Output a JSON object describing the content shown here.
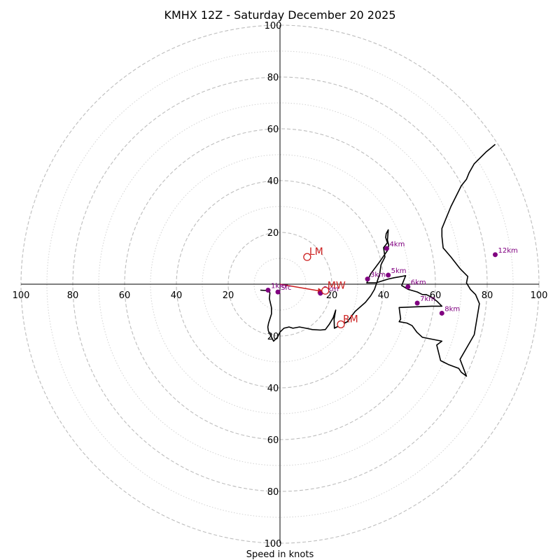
{
  "chart_data": {
    "type": "hodograph",
    "title": "KMHX 12Z - Saturday December 20 2025",
    "xlabel": "Speed in knots",
    "range_kt": 100,
    "ring_step_kt": 10,
    "x_tick_labels": [
      "100",
      "80",
      "60",
      "40",
      "20",
      "20",
      "40",
      "60",
      "80",
      "100"
    ],
    "y_tick_labels": [
      "100",
      "80",
      "60",
      "40",
      "20",
      "20",
      "40",
      "60",
      "80",
      "100"
    ],
    "colors": {
      "trace": "#000000",
      "height_marker": "#800080",
      "motion": "#cc1f1f",
      "grid": "#bdbdbd"
    },
    "trace": {
      "u": [
        -7.6,
        -4.1,
        -3.9,
        -4.1,
        -3.3,
        -3.3,
        -4.4,
        -4.7,
        -4.5,
        -2.5,
        -1.0,
        0.0,
        1.5,
        3.5,
        5.0,
        7.5,
        10.0,
        12.5,
        15.6,
        17.5,
        19.0,
        20.5,
        21.5,
        20.9,
        21.0,
        26.0,
        29.0,
        33.0,
        35.0,
        36.5,
        37.5,
        38.5,
        39.0,
        40.5,
        40.0,
        41.5,
        40.8,
        41.0,
        41.8,
        41.5,
        42.0,
        41.5,
        38.0,
        35.0,
        33.5,
        37.0,
        41.8,
        44.0,
        47.0,
        48.5,
        47.0,
        49.5,
        53.0,
        55.0,
        56.5,
        58.5,
        60.5,
        62.5,
        58.5,
        46.0,
        46.6,
        46.0,
        49.0,
        51.0,
        52.8,
        55.0,
        62.5,
        60.5,
        62.0,
        65.0,
        69.0,
        70.0,
        72.0,
        69.5,
        75.0,
        77.0,
        75.5,
        73.5,
        72.0,
        72.5,
        69.5,
        66.0,
        63.0,
        62.5,
        62.5,
        66.0,
        70.0,
        72.0,
        73.0,
        75.0,
        79.5,
        83.1
      ],
      "v": [
        -2.3,
        -2.5,
        -3.5,
        -5.5,
        -9.0,
        -11.5,
        -15.0,
        -16.5,
        -18.0,
        -22.0,
        -20.5,
        -18.5,
        -17.0,
        -16.5,
        -17.0,
        -16.5,
        -17.0,
        -17.5,
        -17.7,
        -17.5,
        -15.5,
        -13.0,
        -10.0,
        -13.5,
        -17.0,
        -14.5,
        -10.5,
        -7.0,
        -4.5,
        -2.0,
        1.0,
        4.0,
        7.5,
        10.5,
        14.1,
        16.0,
        18.0,
        19.5,
        21.0,
        17.0,
        15.0,
        13.0,
        8.0,
        4.0,
        0.5,
        0.5,
        2.0,
        2.5,
        3.0,
        3.3,
        -0.5,
        -2.0,
        -3.0,
        -4.0,
        -4.0,
        -5.0,
        -6.5,
        -8.5,
        -8.5,
        -9.0,
        -13.5,
        -14.5,
        -15.0,
        -16.0,
        -18.5,
        -20.5,
        -22.0,
        -23.5,
        -29.5,
        -31.0,
        -32.5,
        -34.0,
        -35.5,
        -29.0,
        -19.5,
        -7.5,
        -4.0,
        -2.0,
        0.5,
        3.0,
        6.0,
        10.5,
        14.0,
        18.5,
        21.5,
        30.0,
        38.0,
        40.5,
        43.0,
        46.5,
        51.0,
        54.0
      ]
    },
    "height_markers": [
      {
        "label": "Sfc",
        "u": -0.8,
        "v": -3.0
      },
      {
        "label": "1km",
        "u": -4.6,
        "v": -2.3
      },
      {
        "label": "2km",
        "u": 15.6,
        "v": -3.5
      },
      {
        "label": "3km",
        "u": 33.8,
        "v": 2.0
      },
      {
        "label": "4km",
        "u": 41.2,
        "v": 13.8
      },
      {
        "label": "5km",
        "u": 41.8,
        "v": 3.5
      },
      {
        "label": "6km",
        "u": 49.4,
        "v": -1.0
      },
      {
        "label": "7km",
        "u": 53.0,
        "v": -7.3
      },
      {
        "label": "8km",
        "u": 62.5,
        "v": -11.2
      },
      {
        "label": "12km",
        "u": 83.1,
        "v": 11.4
      }
    ],
    "storm_motion": [
      {
        "label": "LM",
        "u": 10.5,
        "v": 10.5
      },
      {
        "label": "MW",
        "u": 17.5,
        "v": -2.5
      },
      {
        "label": "RM",
        "u": 23.5,
        "v": -15.5
      }
    ],
    "mean_wind_vector": {
      "from_u": 0,
      "from_v": 0,
      "to_u": 16.5,
      "to_v": -2.8
    }
  }
}
